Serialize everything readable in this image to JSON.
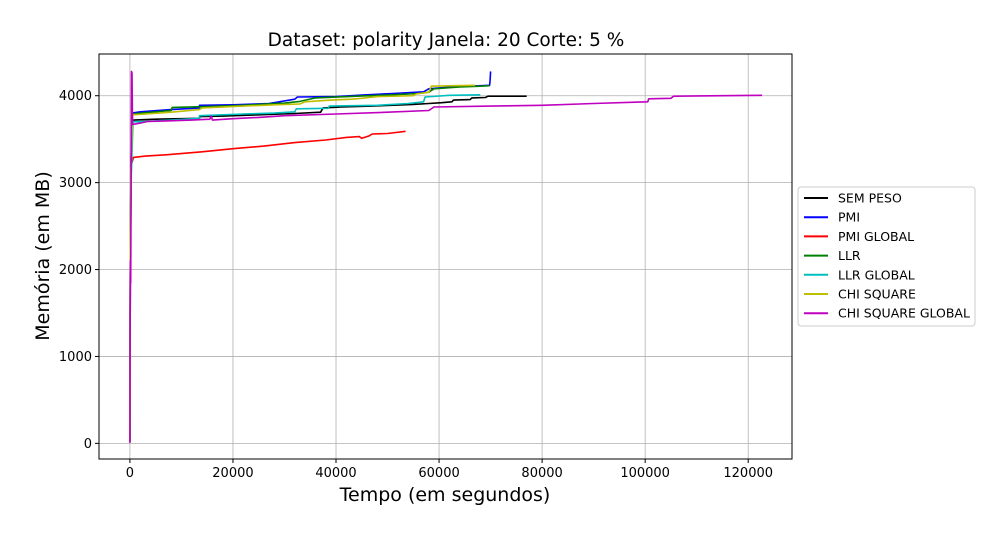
{
  "chart_data": {
    "type": "line",
    "title": "Dataset: polarity Janela: 20 Corte: 5 %",
    "xlabel": "Tempo (em segundos)",
    "ylabel": "Memória (em MB)",
    "xlim": [
      -6000,
      128500
    ],
    "ylim": [
      -180,
      4480
    ],
    "x_ticks": [
      0,
      20000,
      40000,
      60000,
      80000,
      100000,
      120000
    ],
    "y_ticks": [
      0,
      1000,
      2000,
      3000,
      4000
    ],
    "grid": true,
    "legend_position": "center-right-outside",
    "series": [
      {
        "name": "SEM PESO",
        "color": "#000000",
        "points": [
          [
            0,
            30
          ],
          [
            80,
            2100
          ],
          [
            200,
            3000
          ],
          [
            350,
            3700
          ],
          [
            700,
            3720
          ],
          [
            5000,
            3730
          ],
          [
            13500,
            3740
          ],
          [
            13500,
            3760
          ],
          [
            18000,
            3765
          ],
          [
            25000,
            3780
          ],
          [
            32000,
            3795
          ],
          [
            37000,
            3810
          ],
          [
            37500,
            3860
          ],
          [
            41000,
            3870
          ],
          [
            47000,
            3880
          ],
          [
            55000,
            3900
          ],
          [
            58000,
            3910
          ],
          [
            60500,
            3920
          ],
          [
            62500,
            3930
          ],
          [
            62800,
            3950
          ],
          [
            66000,
            3955
          ],
          [
            66400,
            3975
          ],
          [
            69000,
            3980
          ],
          [
            69500,
            3995
          ],
          [
            77000,
            3995
          ]
        ]
      },
      {
        "name": "PMI",
        "color": "#0000ff",
        "points": [
          [
            0,
            20
          ],
          [
            80,
            2200
          ],
          [
            200,
            3100
          ],
          [
            400,
            3800
          ],
          [
            2000,
            3815
          ],
          [
            8000,
            3840
          ],
          [
            13500,
            3860
          ],
          [
            13500,
            3890
          ],
          [
            20000,
            3895
          ],
          [
            27000,
            3910
          ],
          [
            32000,
            3960
          ],
          [
            32500,
            3985
          ],
          [
            40000,
            3990
          ],
          [
            46000,
            4010
          ],
          [
            51000,
            4025
          ],
          [
            57000,
            4045
          ],
          [
            58000,
            4080
          ],
          [
            62000,
            4100
          ],
          [
            66000,
            4110
          ],
          [
            69800,
            4120
          ],
          [
            69900,
            4180
          ],
          [
            70000,
            4280
          ]
        ]
      },
      {
        "name": "PMI GLOBAL",
        "color": "#ff0000",
        "points": [
          [
            0,
            25
          ],
          [
            80,
            1950
          ],
          [
            250,
            3200
          ],
          [
            700,
            3290
          ],
          [
            3000,
            3305
          ],
          [
            7000,
            3320
          ],
          [
            14000,
            3355
          ],
          [
            20000,
            3390
          ],
          [
            26000,
            3420
          ],
          [
            32000,
            3460
          ],
          [
            38000,
            3490
          ],
          [
            42000,
            3520
          ],
          [
            44500,
            3530
          ],
          [
            45000,
            3510
          ],
          [
            46500,
            3540
          ],
          [
            47000,
            3560
          ],
          [
            50000,
            3565
          ],
          [
            53500,
            3590
          ]
        ]
      },
      {
        "name": "LLR",
        "color": "#008000",
        "points": [
          [
            0,
            15
          ],
          [
            80,
            2050
          ],
          [
            200,
            3100
          ],
          [
            500,
            3790
          ],
          [
            3000,
            3805
          ],
          [
            8000,
            3830
          ],
          [
            8200,
            3865
          ],
          [
            15000,
            3875
          ],
          [
            22000,
            3890
          ],
          [
            30000,
            3915
          ],
          [
            33000,
            3935
          ],
          [
            36000,
            3975
          ],
          [
            44000,
            3995
          ],
          [
            51000,
            4010
          ],
          [
            56000,
            4025
          ],
          [
            58000,
            4040
          ],
          [
            59000,
            4080
          ],
          [
            64000,
            4100
          ],
          [
            68000,
            4110
          ],
          [
            69800,
            4115
          ]
        ]
      },
      {
        "name": "LLR GLOBAL",
        "color": "#00bfbf",
        "points": [
          [
            0,
            10
          ],
          [
            80,
            2000
          ],
          [
            250,
            3050
          ],
          [
            600,
            3700
          ],
          [
            3000,
            3705
          ],
          [
            8000,
            3720
          ],
          [
            13500,
            3740
          ],
          [
            13500,
            3770
          ],
          [
            22000,
            3790
          ],
          [
            28000,
            3800
          ],
          [
            32000,
            3815
          ],
          [
            32300,
            3850
          ],
          [
            38500,
            3855
          ],
          [
            38700,
            3880
          ],
          [
            48000,
            3890
          ],
          [
            54000,
            3910
          ],
          [
            57000,
            3930
          ],
          [
            57300,
            3985
          ],
          [
            62000,
            4005
          ],
          [
            68000,
            4010
          ]
        ]
      },
      {
        "name": "CHI SQUARE",
        "color": "#bfbf00",
        "points": [
          [
            0,
            20
          ],
          [
            80,
            2150
          ],
          [
            200,
            3150
          ],
          [
            500,
            3780
          ],
          [
            3000,
            3790
          ],
          [
            8000,
            3810
          ],
          [
            13500,
            3840
          ],
          [
            14000,
            3860
          ],
          [
            22000,
            3880
          ],
          [
            28000,
            3895
          ],
          [
            33000,
            3905
          ],
          [
            34000,
            3930
          ],
          [
            39000,
            3950
          ],
          [
            43000,
            3960
          ],
          [
            45000,
            3970
          ],
          [
            48000,
            3990
          ],
          [
            55000,
            4000
          ],
          [
            55500,
            4020
          ],
          [
            58000,
            4040
          ],
          [
            58500,
            4110
          ],
          [
            63000,
            4115
          ],
          [
            67000,
            4120
          ]
        ]
      },
      {
        "name": "CHI SQUARE GLOBAL",
        "color": "#bf00bf",
        "points": [
          [
            0,
            5
          ],
          [
            60,
            1500
          ],
          [
            100,
            2100
          ],
          [
            150,
            1850
          ],
          [
            250,
            3300
          ],
          [
            300,
            4280
          ],
          [
            400,
            4260
          ],
          [
            500,
            3670
          ],
          [
            2000,
            3685
          ],
          [
            3500,
            3705
          ],
          [
            7000,
            3710
          ],
          [
            12000,
            3720
          ],
          [
            15500,
            3730
          ],
          [
            15800,
            3765
          ],
          [
            16000,
            3720
          ],
          [
            20000,
            3735
          ],
          [
            25000,
            3750
          ],
          [
            30000,
            3770
          ],
          [
            40000,
            3790
          ],
          [
            50000,
            3810
          ],
          [
            58000,
            3830
          ],
          [
            59000,
            3870
          ],
          [
            70000,
            3880
          ],
          [
            80000,
            3890
          ],
          [
            90000,
            3910
          ],
          [
            98000,
            3925
          ],
          [
            100500,
            3930
          ],
          [
            100700,
            3965
          ],
          [
            105000,
            3970
          ],
          [
            105500,
            3995
          ],
          [
            115000,
            4000
          ],
          [
            122700,
            4005
          ]
        ]
      }
    ]
  }
}
